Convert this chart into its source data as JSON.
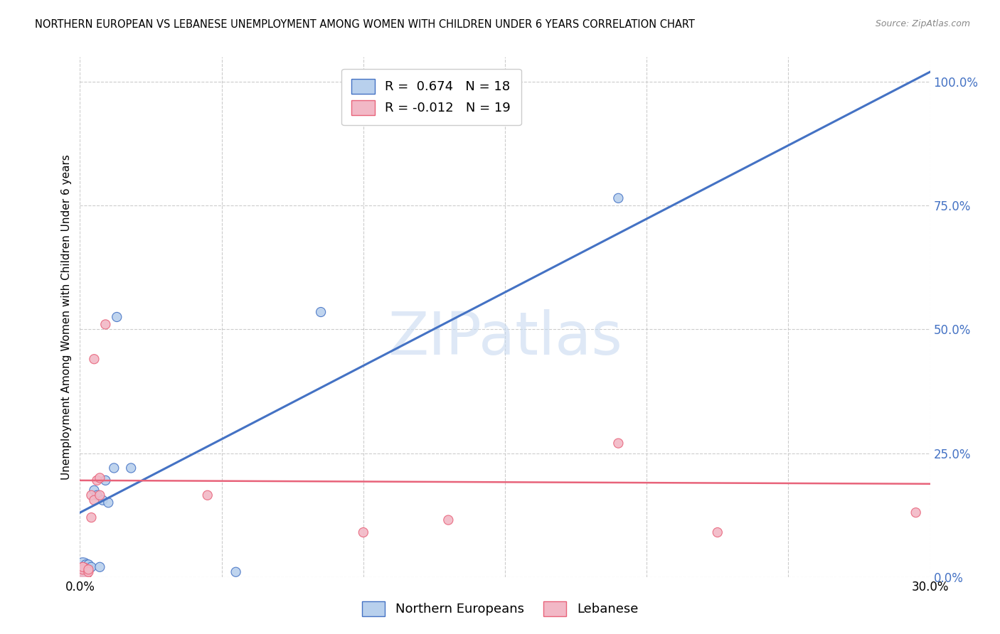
{
  "title": "NORTHERN EUROPEAN VS LEBANESE UNEMPLOYMENT AMONG WOMEN WITH CHILDREN UNDER 6 YEARS CORRELATION CHART",
  "source": "Source: ZipAtlas.com",
  "ylabel": "Unemployment Among Women with Children Under 6 years",
  "legend1_label": "R =  0.674   N = 18",
  "legend2_label": "R = -0.012   N = 19",
  "legend1_color": "#b8d0ed",
  "legend2_color": "#f2b8c6",
  "trendline1_color": "#4472c4",
  "trendline2_color": "#e8637a",
  "watermark_text": "ZIPatlas",
  "blue_points": [
    [
      0.001,
      0.02
    ],
    [
      0.002,
      0.025
    ],
    [
      0.003,
      0.02
    ],
    [
      0.003,
      0.025
    ],
    [
      0.004,
      0.02
    ],
    [
      0.005,
      0.175
    ],
    [
      0.006,
      0.165
    ],
    [
      0.007,
      0.02
    ],
    [
      0.008,
      0.155
    ],
    [
      0.009,
      0.195
    ],
    [
      0.01,
      0.15
    ],
    [
      0.012,
      0.22
    ],
    [
      0.013,
      0.525
    ],
    [
      0.018,
      0.22
    ],
    [
      0.055,
      0.01
    ],
    [
      0.085,
      0.535
    ],
    [
      0.19,
      0.765
    ],
    [
      0.002,
      0.015
    ]
  ],
  "pink_points": [
    [
      0.001,
      0.01
    ],
    [
      0.001,
      0.015
    ],
    [
      0.001,
      0.02
    ],
    [
      0.003,
      0.01
    ],
    [
      0.003,
      0.015
    ],
    [
      0.004,
      0.165
    ],
    [
      0.004,
      0.12
    ],
    [
      0.005,
      0.155
    ],
    [
      0.005,
      0.44
    ],
    [
      0.006,
      0.195
    ],
    [
      0.007,
      0.165
    ],
    [
      0.007,
      0.2
    ],
    [
      0.009,
      0.51
    ],
    [
      0.045,
      0.165
    ],
    [
      0.1,
      0.09
    ],
    [
      0.13,
      0.115
    ],
    [
      0.19,
      0.27
    ],
    [
      0.225,
      0.09
    ],
    [
      0.295,
      0.13
    ]
  ],
  "blue_sizes_large": [
    [
      0,
      350
    ]
  ],
  "point_size_default": 90,
  "xlim": [
    0.0,
    0.3
  ],
  "ylim": [
    -0.02,
    1.05
  ],
  "plot_ylim": [
    0.0,
    1.05
  ],
  "trendline1_x": [
    0.0,
    0.3
  ],
  "trendline1_y": [
    0.13,
    1.02
  ],
  "trendline2_x": [
    0.0,
    0.3
  ],
  "trendline2_y": [
    0.195,
    0.188
  ],
  "grid_color": "#cccccc",
  "background_color": "#ffffff",
  "ytick_color": "#4472c4",
  "right_yticks": [
    0.0,
    0.25,
    0.5,
    0.75,
    1.0
  ],
  "right_yticklabels": [
    "0.0%",
    "25.0%",
    "50.0%",
    "75.0%",
    "100.0%"
  ]
}
